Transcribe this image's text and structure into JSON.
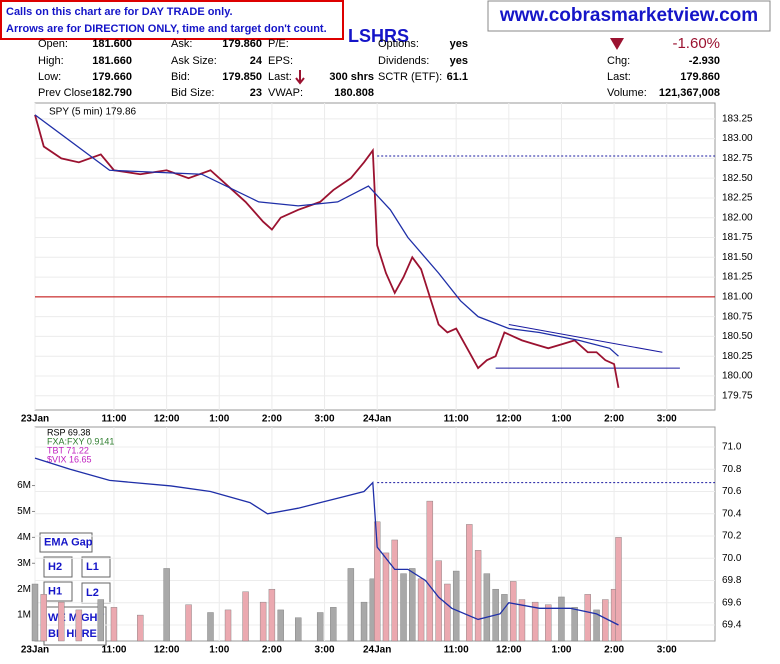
{
  "notes": {
    "calls": "Calls on this chart are for DAY TRADE only.",
    "arrows": "Arrows are for DIRECTION ONLY, time and target don't count.",
    "website": "www.cobrasmarketview.com",
    "ticker_tag": "LSHRS",
    "boxes": [
      "EMA Gap",
      "H2",
      "L1",
      "H1",
      "L2",
      "WE MIGHT",
      "BE HERE."
    ]
  },
  "header": {
    "change_pct": "-1.60%",
    "columns": [
      [
        {
          "label": "Open:",
          "value": "181.600"
        },
        {
          "label": "High:",
          "value": "181.660"
        },
        {
          "label": "Low:",
          "value": "179.660"
        },
        {
          "label": "Prev Close:",
          "value": "182.790"
        }
      ],
      [
        {
          "label": "Ask:",
          "value": "179.860"
        },
        {
          "label": "Ask Size:",
          "value": "24"
        },
        {
          "label": "Bid:",
          "value": "179.850"
        },
        {
          "label": "Bid Size:",
          "value": "23"
        }
      ],
      [
        {
          "label": "P/E:"
        },
        {
          "label": "EPS:"
        },
        {
          "label": "Last:",
          "value": "300 shrs"
        },
        {
          "label": "VWAP:",
          "value": "180.808"
        }
      ],
      [
        {
          "label": "Options:",
          "value": "yes"
        },
        {
          "label": "Dividends:",
          "value": "yes"
        },
        {
          "label": "SCTR (ETF):",
          "value": "61.1"
        }
      ],
      [
        {
          "label": "Chg:",
          "value": "-2.930"
        },
        {
          "label": "Last:",
          "value": "179.860"
        },
        {
          "label": "Volume:",
          "value": "121,367,008"
        }
      ]
    ]
  },
  "chart_data": [
    {
      "type": "line",
      "title": "SPY (5 min) 179.86",
      "xlim": [
        0,
        155
      ],
      "ylim": [
        179.57,
        183.45
      ],
      "xticks": [
        {
          "value": 0,
          "label": "23Jan"
        },
        {
          "value": 18,
          "label": "11:00"
        },
        {
          "value": 30,
          "label": "12:00"
        },
        {
          "value": 42,
          "label": "1:00"
        },
        {
          "value": 54,
          "label": "2:00"
        },
        {
          "value": 66,
          "label": "3:00"
        },
        {
          "value": 78,
          "label": "24Jan"
        },
        {
          "value": 96,
          "label": "11:00"
        },
        {
          "value": 108,
          "label": "12:00"
        },
        {
          "value": 120,
          "label": "1:00"
        },
        {
          "value": 132,
          "label": "2:00"
        },
        {
          "value": 144,
          "label": "3:00"
        }
      ],
      "yticks": [
        179.75,
        {
          "value": 180,
          "label": "180.00"
        },
        180.25,
        {
          "value": 180.5,
          "label": "180.50"
        },
        180.75,
        {
          "value": 181,
          "label": "181.00"
        },
        181.25,
        {
          "value": 181.5,
          "label": "181.50"
        },
        181.75,
        {
          "value": 182,
          "label": "182.00"
        },
        182.25,
        {
          "value": 182.5,
          "label": "182.50"
        },
        182.75,
        {
          "value": 183,
          "label": "183.00"
        },
        183.25
      ],
      "grid": true,
      "series": [
        {
          "name": "SPY",
          "color": "#9b1230",
          "x": [
            0,
            2,
            6,
            10,
            15,
            18,
            24,
            30,
            35,
            40,
            44,
            48,
            52,
            54,
            56,
            60,
            65,
            68,
            72,
            75,
            77,
            78,
            80,
            82,
            84,
            86,
            88,
            90,
            92,
            94,
            96,
            99,
            101,
            103,
            105,
            107,
            109,
            111,
            114,
            117,
            120,
            123,
            126,
            128,
            130,
            132,
            133
          ],
          "values": [
            183.3,
            182.9,
            182.75,
            182.7,
            182.8,
            182.6,
            182.55,
            182.6,
            182.5,
            182.6,
            182.4,
            182.2,
            181.95,
            181.85,
            182.0,
            182.1,
            182.2,
            182.35,
            182.5,
            182.7,
            182.85,
            181.65,
            181.3,
            181.05,
            181.25,
            181.5,
            181.35,
            181.0,
            180.65,
            180.55,
            180.6,
            180.3,
            180.1,
            180.2,
            180.25,
            180.55,
            180.5,
            180.45,
            180.4,
            180.35,
            180.4,
            180.45,
            180.3,
            180.3,
            180.2,
            180.15,
            179.85
          ]
        },
        {
          "name": "EMA",
          "color": "#1f2fa8",
          "x": [
            0,
            17,
            38,
            51,
            60,
            69,
            76,
            81,
            85,
            92,
            97,
            101,
            108,
            115,
            124,
            131,
            133
          ],
          "values": [
            183.3,
            182.6,
            182.55,
            182.2,
            182.15,
            182.2,
            182.4,
            182.1,
            181.75,
            181.3,
            180.95,
            180.75,
            180.6,
            180.55,
            180.45,
            180.35,
            180.25
          ]
        }
      ],
      "hlines": [
        {
          "value": 181.0,
          "color": "#c00000"
        },
        {
          "value": 182.78,
          "color": "#1a1aa0",
          "dashed": true,
          "from": 78
        },
        {
          "value": 180.1,
          "color": "#1a1aa0",
          "from": 105,
          "to": 147
        }
      ],
      "trendline": {
        "color": "#1a1aa0",
        "x": [
          108,
          143
        ],
        "values": [
          180.65,
          180.3
        ]
      }
    },
    {
      "type": "bar",
      "xlim": [
        0,
        155
      ],
      "ylim": [
        0,
        8260000
      ],
      "y2lim": [
        69.256,
        71.18
      ],
      "xticks": [
        {
          "value": 0,
          "label": "23Jan"
        },
        {
          "value": 18,
          "label": "11:00"
        },
        {
          "value": 30,
          "label": "12:00"
        },
        {
          "value": 42,
          "label": "1:00"
        },
        {
          "value": 54,
          "label": "2:00"
        },
        {
          "value": 66,
          "label": "3:00"
        },
        {
          "value": 78,
          "label": "24Jan"
        },
        {
          "value": 96,
          "label": "11:00"
        },
        {
          "value": 108,
          "label": "12:00"
        },
        {
          "value": 120,
          "label": "1:00"
        },
        {
          "value": 132,
          "label": "2:00"
        },
        {
          "value": 144,
          "label": "3:00"
        }
      ],
      "yticks": [
        {
          "value": 1000000,
          "label": "1M"
        },
        {
          "value": 2000000,
          "label": "2M"
        },
        {
          "value": 3000000,
          "label": "3M"
        },
        {
          "value": 4000000,
          "label": "4M"
        },
        {
          "value": 5000000,
          "label": "5M"
        },
        {
          "value": 6000000,
          "label": "6M"
        }
      ],
      "y2ticks": [
        69.4,
        69.6,
        69.8,
        {
          "value": 70,
          "label": "70.0"
        },
        70.2,
        70.4,
        70.6,
        70.8,
        {
          "value": 71,
          "label": "71.0"
        }
      ],
      "legend_labels": [
        "RSP 69.38",
        "FXA:FXY 0.9141",
        "TBT 71.22",
        "$VIX 16.65"
      ],
      "legend_colors": [
        "#000000",
        "#2e7d2e",
        "#c020c0",
        "#c020c0"
      ],
      "up_color": "#a9a9a9",
      "down_color": "#eba9b0",
      "x": [
        0,
        2,
        6,
        10,
        15,
        18,
        24,
        30,
        35,
        40,
        44,
        48,
        52,
        54,
        56,
        60,
        65,
        68,
        72,
        75,
        77,
        78,
        80,
        82,
        84,
        86,
        88,
        90,
        92,
        94,
        96,
        99,
        101,
        103,
        105,
        107,
        109,
        111,
        114,
        117,
        120,
        123,
        126,
        128,
        130,
        132,
        133
      ],
      "values": [
        2200000,
        1800000,
        1500000,
        1200000,
        1600000,
        1300000,
        1000000,
        2800000,
        1400000,
        1100000,
        1200000,
        1900000,
        1500000,
        2000000,
        1200000,
        900000,
        1100000,
        1300000,
        2800000,
        1500000,
        2400000,
        4600000,
        3400000,
        3900000,
        2600000,
        2800000,
        2400000,
        5400000,
        3100000,
        2200000,
        2700000,
        4500000,
        3500000,
        2600000,
        2000000,
        1800000,
        2300000,
        1600000,
        1500000,
        1400000,
        1700000,
        1300000,
        1800000,
        1200000,
        1600000,
        2000000,
        4000000
      ],
      "series": [
        {
          "name": "RSP",
          "color": "#1f2fa8",
          "axis": "y2",
          "x": [
            0,
            8,
            17,
            31,
            40,
            49,
            53,
            60,
            65,
            70,
            75,
            77,
            78,
            82,
            85,
            89,
            92,
            95,
            101,
            106,
            108,
            115,
            122,
            128,
            133
          ],
          "values": [
            70.9,
            70.8,
            70.7,
            70.65,
            70.6,
            70.5,
            70.4,
            70.45,
            70.5,
            70.55,
            70.6,
            70.68,
            70.1,
            69.9,
            69.9,
            69.8,
            69.65,
            69.55,
            69.45,
            69.5,
            69.6,
            69.55,
            69.55,
            69.5,
            69.4
          ]
        }
      ],
      "hlines": [
        {
          "value": 70.68,
          "axis": "y2",
          "color": "#1a1aa0",
          "dashed": true,
          "from": 78
        }
      ]
    }
  ]
}
